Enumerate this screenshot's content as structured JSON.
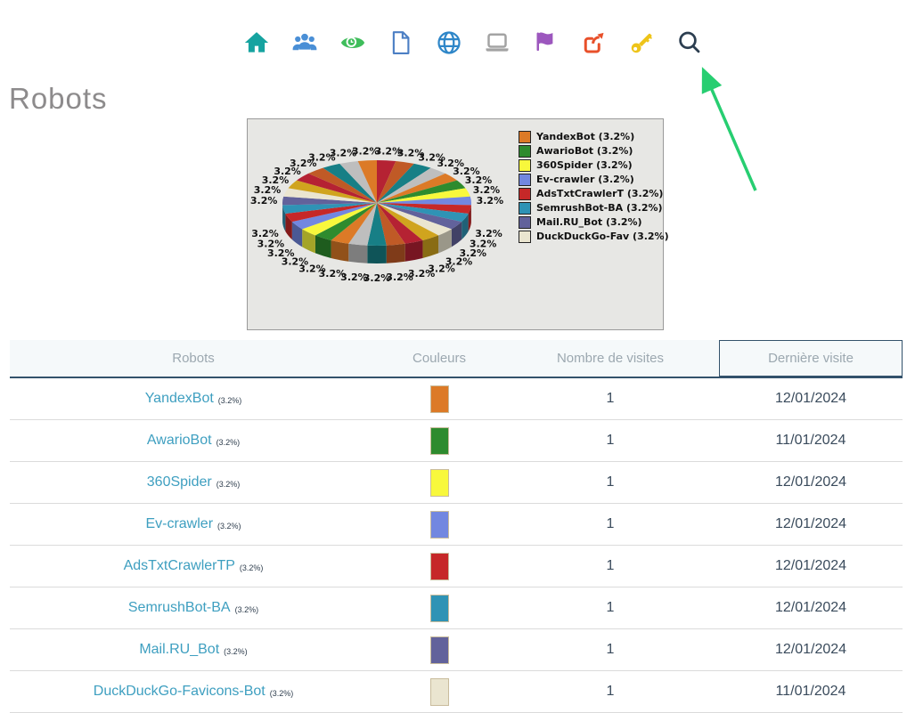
{
  "page": {
    "title": "Robots"
  },
  "nav": {
    "icons": [
      {
        "name": "home-icon",
        "color": "#16a3a0"
      },
      {
        "name": "users-icon",
        "color": "#4a8fd6"
      },
      {
        "name": "eye-icon",
        "color": "#3fbd5b"
      },
      {
        "name": "document-icon",
        "color": "#4c7fc4"
      },
      {
        "name": "globe-icon",
        "color": "#2e86c8"
      },
      {
        "name": "laptop-icon",
        "color": "#a3a3a3"
      },
      {
        "name": "flag-icon",
        "color": "#9c57be"
      },
      {
        "name": "share-icon",
        "color": "#e8502a"
      },
      {
        "name": "key-icon",
        "color": "#eec419"
      },
      {
        "name": "search-icon",
        "color": "#2c3e50"
      }
    ]
  },
  "arrow": {
    "color": "#27ce71",
    "points_to": "search-icon"
  },
  "chart_data": {
    "type": "pie",
    "style": "3d",
    "slice_count": 31,
    "slice_value_percent": 3.2,
    "slice_label": "3.2%",
    "legend_position": "right",
    "legend": [
      {
        "label": "YandexBot (3.2%)",
        "name": "YandexBot",
        "percent": 3.2,
        "color": "#dc7a27"
      },
      {
        "label": "AwarioBot (3.2%)",
        "name": "AwarioBot",
        "percent": 3.2,
        "color": "#2e8b2e"
      },
      {
        "label": "360Spider (3.2%)",
        "name": "360Spider",
        "percent": 3.2,
        "color": "#f8f83c"
      },
      {
        "label": "Ev-crawler (3.2%)",
        "name": "Ev-crawler",
        "percent": 3.2,
        "color": "#7287e0"
      },
      {
        "label": "AdsTxtCrawlerT (3.2%)",
        "name": "AdsTxtCrawlerT",
        "percent": 3.2,
        "color": "#c62828"
      },
      {
        "label": "SemrushBot-BA (3.2%)",
        "name": "SemrushBot-BA",
        "percent": 3.2,
        "color": "#2f93b5"
      },
      {
        "label": "Mail.RU_Bot (3.2%)",
        "name": "Mail.RU_Bot",
        "percent": 3.2,
        "color": "#62629b"
      },
      {
        "label": "DuckDuckGo-Fav (3.2%)",
        "name": "DuckDuckGo-Fav",
        "percent": 3.2,
        "color": "#eae5d0"
      }
    ],
    "palette_cycle": [
      "#b52233",
      "#c05a26",
      "#177f86",
      "#bebebe",
      "#dc7a27",
      "#2e8b2e",
      "#f8f83c",
      "#7287e0",
      "#c62828",
      "#2f93b5",
      "#62629b",
      "#eae5d0",
      "#d0a41e"
    ]
  },
  "table": {
    "columns": [
      {
        "label": "Robots"
      },
      {
        "label": "Couleurs"
      },
      {
        "label": "Nombre de visites"
      },
      {
        "label": "Dernière visite",
        "sorted": true
      }
    ],
    "rows": [
      {
        "robot": "YandexBot",
        "share": "(3.2%)",
        "color": "#dc7a27",
        "visits": "1",
        "last_visit": "12/01/2024"
      },
      {
        "robot": "AwarioBot",
        "share": "(3.2%)",
        "color": "#2e8b2e",
        "visits": "1",
        "last_visit": "11/01/2024"
      },
      {
        "robot": "360Spider",
        "share": "(3.2%)",
        "color": "#f8f83c",
        "visits": "1",
        "last_visit": "12/01/2024"
      },
      {
        "robot": "Ev-crawler",
        "share": "(3.2%)",
        "color": "#7287e0",
        "visits": "1",
        "last_visit": "12/01/2024"
      },
      {
        "robot": "AdsTxtCrawlerTP",
        "share": "(3.2%)",
        "color": "#c62828",
        "visits": "1",
        "last_visit": "12/01/2024"
      },
      {
        "robot": "SemrushBot-BA",
        "share": "(3.2%)",
        "color": "#2f93b5",
        "visits": "1",
        "last_visit": "12/01/2024"
      },
      {
        "robot": "Mail.RU_Bot",
        "share": "(3.2%)",
        "color": "#62629b",
        "visits": "1",
        "last_visit": "12/01/2024"
      },
      {
        "robot": "DuckDuckGo-Favicons-Bot",
        "share": "(3.2%)",
        "color": "#eae5d0",
        "visits": "1",
        "last_visit": "11/01/2024"
      }
    ]
  }
}
